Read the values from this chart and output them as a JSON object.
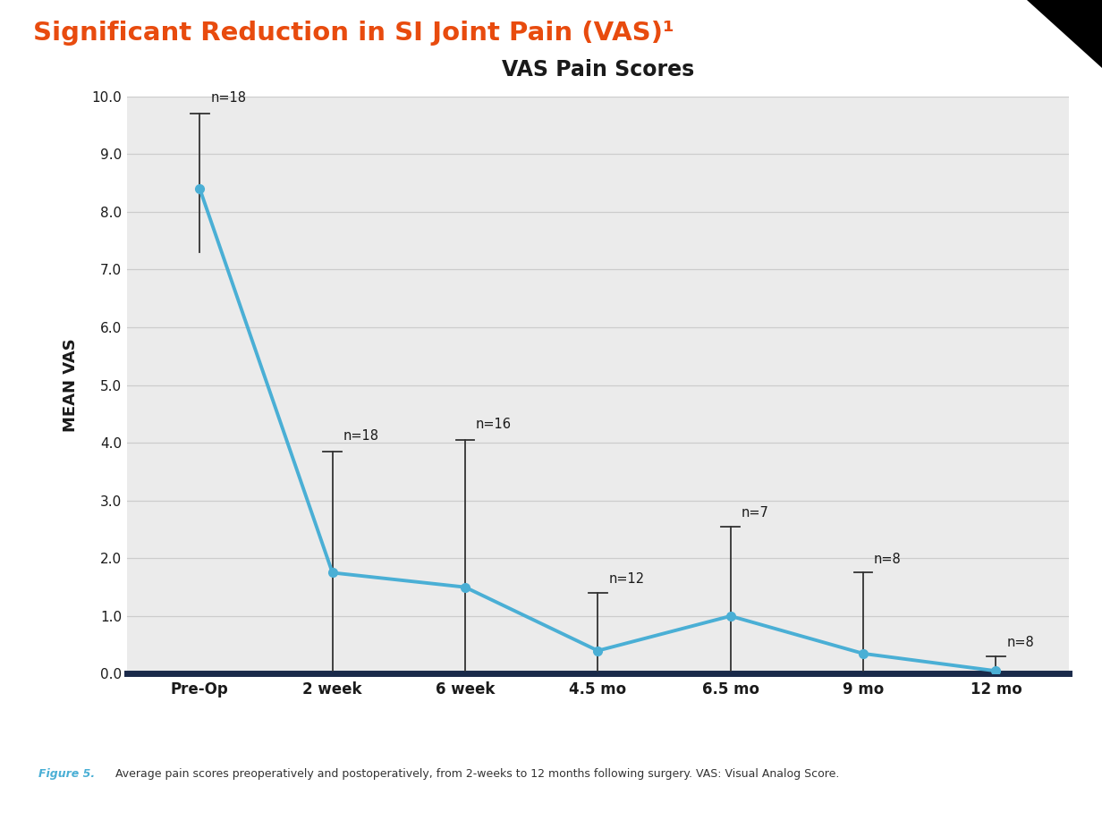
{
  "title": "Significant Reduction in SI Joint Pain (VAS)¹",
  "chart_title": "VAS Pain Scores",
  "ylabel": "MEAN VAS",
  "background_color": "#ebebeb",
  "outer_background": "#ffffff",
  "x_labels": [
    "Pre-Op",
    "2 week",
    "6 week",
    "4.5 mo",
    "6.5 mo",
    "9 mo",
    "12 mo"
  ],
  "y_values": [
    8.4,
    1.75,
    1.5,
    0.4,
    1.0,
    0.35,
    0.05
  ],
  "y_err_upper": [
    9.7,
    3.85,
    4.05,
    1.4,
    2.55,
    1.75,
    0.3
  ],
  "y_err_lower": [
    7.3,
    0.05,
    0.05,
    0.05,
    0.05,
    0.05,
    0.05
  ],
  "n_labels": [
    "n=18",
    "n=18",
    "n=16",
    "n=12",
    "n=7",
    "n=8",
    "n=8"
  ],
  "line_color": "#4aafd5",
  "errorbar_color": "#333333",
  "title_color": "#e84b0e",
  "chart_title_color": "#1a1a1a",
  "axis_label_color": "#1a1a1a",
  "bottom_bar_color": "#1a2a4a",
  "bottom_accent_color": "#5bb8d4",
  "figure5_color": "#4aafd5",
  "caption_text": "Average pain scores preoperatively and postoperatively, from 2-weeks to 12 months following surgery. VAS: Visual Analog Score.",
  "ylim": [
    0.0,
    10.0
  ],
  "yticks": [
    0.0,
    1.0,
    2.0,
    3.0,
    4.0,
    5.0,
    6.0,
    7.0,
    8.0,
    9.0,
    10.0
  ],
  "grid_color": "#cccccc",
  "line_width": 2.8,
  "marker_size": 7,
  "n_label_x_offsets": [
    0.08,
    0.08,
    0.08,
    0.08,
    0.08,
    0.08,
    0.08
  ],
  "n_label_y_offsets": [
    0.15,
    0.15,
    0.15,
    0.12,
    0.12,
    0.12,
    0.12
  ]
}
